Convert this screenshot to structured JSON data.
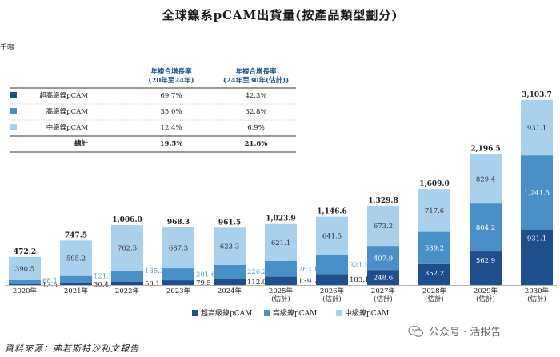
{
  "header": {
    "title": "全球鎳系pCAM出貨量(按產品類型劃分)",
    "unit": "千噸"
  },
  "footer": {
    "source": "資料來源：弗若斯特沙利文報告",
    "watermark": "公众号 · 活报告"
  },
  "colors": {
    "ultra_high": "#1e4f8c",
    "high": "#4a90c8",
    "medium": "#a9d1ee",
    "value_label_medium": "#5a9fd4"
  },
  "chart_data": {
    "type": "bar",
    "stacked": true,
    "title": "全球鎳系pCAM出貨量(按產品類型劃分)",
    "ylabel": "千噸",
    "xlabel": "",
    "categories": [
      "2020年",
      "2021年",
      "2022年",
      "2023年",
      "2024年",
      "2025年\n(估計)",
      "2026年\n(估計)",
      "2027年\n(估計)",
      "2028年\n(估計)",
      "2029年\n(估計)",
      "2030年\n(估計)"
    ],
    "series": [
      {
        "name": "超高級鎳pCAM",
        "color": "#1e4f8c",
        "values": [
          13.5,
          30.4,
          58.1,
          79.5,
          112.0,
          139.7,
          183.1,
          248.6,
          352.2,
          562.9,
          931.1
        ]
      },
      {
        "name": "高級鎳pCAM",
        "color": "#4a90c8",
        "values": [
          68.1,
          121.9,
          185.3,
          201.6,
          226.2,
          263.1,
          321.9,
          407.9,
          539.2,
          804.2,
          1241.5
        ]
      },
      {
        "name": "中級鎳pCAM",
        "color": "#a9d1ee",
        "values": [
          390.5,
          595.2,
          762.5,
          687.3,
          623.3,
          621.1,
          641.5,
          673.2,
          717.6,
          829.4,
          931.1
        ]
      }
    ],
    "totals": [
      472.2,
      747.5,
      1006.0,
      968.3,
      961.5,
      1023.9,
      1146.6,
      1329.8,
      1609.0,
      2196.5,
      3103.7
    ],
    "value_labels": {
      "ultra": [
        "13.5",
        "30.4",
        "58.1",
        "79.5",
        "112.0",
        "139.7",
        "183.1",
        "248.6",
        "352.2",
        "562.9",
        "931.1"
      ],
      "high": [
        "68.1",
        "121.9",
        "185.3",
        "201.6",
        "226.2",
        "263.1",
        "321.9",
        "407.9",
        "539.2",
        "804.2",
        "1,241.5"
      ],
      "medium": [
        "390.5",
        "595.2",
        "762.5",
        "687.3",
        "623.3",
        "621.1",
        "641.5",
        "673.2",
        "717.6",
        "829.4",
        "931.1"
      ],
      "totals": [
        "472.2",
        "747.5",
        "1,006.0",
        "968.3",
        "961.5",
        "1,023.9",
        "1,146.6",
        "1,329.8",
        "1,609.0",
        "2,196.5",
        "3,103.7"
      ]
    },
    "ylim": [
      0,
      3200
    ],
    "legend": [
      "超高級鎳pCAM",
      "高級鎳pCAM",
      "中級鎳pCAM"
    ],
    "legend_position": "bottom"
  },
  "cagr_table": {
    "header_1": "年複合增長率\n(20年至24年)",
    "header_2": "年複合增長率\n(24年至30年(估計))",
    "rows": [
      {
        "label": "超高級鎳pCAM",
        "swatch": "ultra",
        "cagr_20_24": "69.7%",
        "cagr_24_30": "42.3%"
      },
      {
        "label": "高級鎳pCAM",
        "swatch": "high",
        "cagr_20_24": "35.0%",
        "cagr_24_30": "32.8%"
      },
      {
        "label": "中級鎳pCAM",
        "swatch": "medium",
        "cagr_20_24": "12.4%",
        "cagr_24_30": "6.9%"
      },
      {
        "label": "總計",
        "swatch": "",
        "cagr_20_24": "19.5%",
        "cagr_24_30": "21.6%"
      }
    ]
  }
}
